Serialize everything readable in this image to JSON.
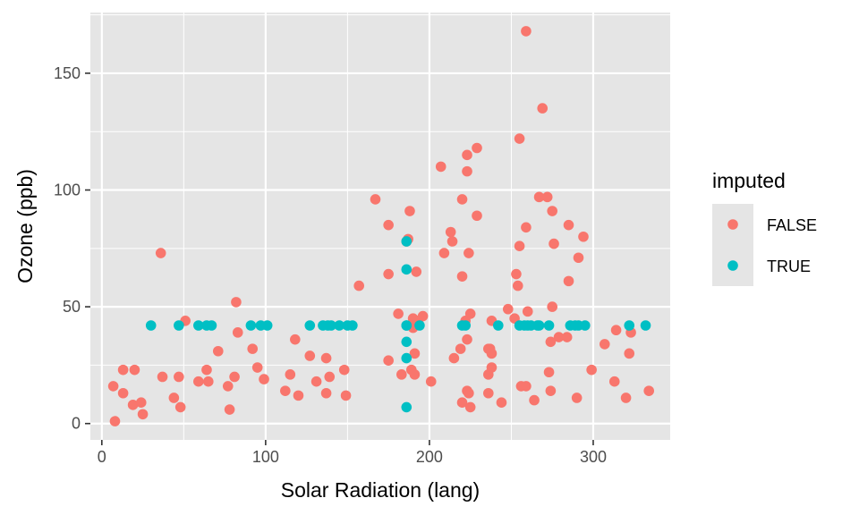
{
  "colors": {
    "panel_background": "#e5e5e5",
    "gridline": "#ffffff",
    "tick": "#333333",
    "false_series": "#f8766d",
    "true_series": "#00bfc4"
  },
  "chart_data": {
    "type": "scatter",
    "xlabel": "Solar Radiation (lang)",
    "ylabel": "Ozone (ppb)",
    "xlim": [
      -7,
      347
    ],
    "ylim": [
      -7,
      176
    ],
    "x_ticks": [
      0,
      100,
      200,
      300
    ],
    "y_ticks": [
      0,
      50,
      100,
      150
    ],
    "grid": true,
    "legend": {
      "title": "imputed",
      "placement": "right"
    },
    "series": [
      {
        "name": "FALSE",
        "color": "#f8766d",
        "points": [
          [
            190,
            41
          ],
          [
            118,
            36
          ],
          [
            149,
            12
          ],
          [
            313,
            18
          ],
          [
            299,
            23
          ],
          [
            99,
            19
          ],
          [
            19,
            8
          ],
          [
            256,
            16
          ],
          [
            290,
            11
          ],
          [
            274,
            14
          ],
          [
            65,
            18
          ],
          [
            334,
            14
          ],
          [
            307,
            34
          ],
          [
            78,
            6
          ],
          [
            322,
            30
          ],
          [
            44,
            11
          ],
          [
            8,
            1
          ],
          [
            320,
            11
          ],
          [
            25,
            4
          ],
          [
            92,
            32
          ],
          [
            13,
            23
          ],
          [
            252,
            45
          ],
          [
            223,
            115
          ],
          [
            279,
            37
          ],
          [
            127,
            29
          ],
          [
            291,
            71
          ],
          [
            323,
            39
          ],
          [
            148,
            23
          ],
          [
            191,
            21
          ],
          [
            284,
            37
          ],
          [
            37,
            20
          ],
          [
            120,
            12
          ],
          [
            137,
            13
          ],
          [
            269,
            135
          ],
          [
            248,
            49
          ],
          [
            236,
            32
          ],
          [
            175,
            64
          ],
          [
            314,
            40
          ],
          [
            276,
            77
          ],
          [
            267,
            97
          ],
          [
            272,
            97
          ],
          [
            175,
            85
          ],
          [
            264,
            10
          ],
          [
            175,
            27
          ],
          [
            48,
            7
          ],
          [
            260,
            48
          ],
          [
            274,
            35
          ],
          [
            285,
            61
          ],
          [
            187,
            79
          ],
          [
            220,
            63
          ],
          [
            7,
            16
          ],
          [
            294,
            80
          ],
          [
            223,
            108
          ],
          [
            81,
            20
          ],
          [
            82,
            52
          ],
          [
            213,
            82
          ],
          [
            275,
            50
          ],
          [
            253,
            64
          ],
          [
            254,
            59
          ],
          [
            83,
            39
          ],
          [
            24,
            9
          ],
          [
            77,
            16
          ],
          [
            255,
            122
          ],
          [
            229,
            89
          ],
          [
            207,
            110
          ],
          [
            222,
            44
          ],
          [
            137,
            28
          ],
          [
            192,
            65
          ],
          [
            273,
            22
          ],
          [
            157,
            59
          ],
          [
            64,
            23
          ],
          [
            71,
            31
          ],
          [
            51,
            44
          ],
          [
            115,
            21
          ],
          [
            244,
            9
          ],
          [
            190,
            45
          ],
          [
            259,
            168
          ],
          [
            36,
            73
          ],
          [
            255,
            76
          ],
          [
            229,
            118
          ],
          [
            259,
            84
          ],
          [
            285,
            85
          ],
          [
            220,
            96
          ],
          [
            214,
            78
          ],
          [
            224,
            73
          ],
          [
            275,
            91
          ],
          [
            225,
            47
          ],
          [
            237,
            32
          ],
          [
            139,
            20
          ],
          [
            189,
            23
          ],
          [
            236,
            21
          ],
          [
            95,
            24
          ],
          [
            238,
            44
          ],
          [
            183,
            21
          ],
          [
            215,
            28
          ],
          [
            220,
            9
          ],
          [
            236,
            13
          ],
          [
            196,
            46
          ],
          [
            201,
            18
          ],
          [
            224,
            13
          ],
          [
            238,
            24
          ],
          [
            259,
            16
          ],
          [
            13,
            13
          ],
          [
            20,
            23
          ],
          [
            223,
            36
          ],
          [
            225,
            7
          ],
          [
            223,
            14
          ],
          [
            238,
            30
          ],
          [
            112,
            14
          ],
          [
            59,
            18
          ],
          [
            47,
            20
          ],
          [
            167,
            96
          ],
          [
            186,
            78
          ],
          [
            209,
            73
          ],
          [
            188,
            91
          ],
          [
            181,
            47
          ],
          [
            219,
            32
          ],
          [
            193,
            44
          ],
          [
            191,
            30
          ],
          [
            131,
            18
          ]
        ]
      },
      {
        "name": "TRUE",
        "color": "#00bfc4",
        "points": [
          [
            30,
            42
          ],
          [
            47,
            42
          ],
          [
            59,
            42
          ],
          [
            64,
            42
          ],
          [
            67,
            42
          ],
          [
            91,
            42
          ],
          [
            97,
            42
          ],
          [
            101,
            42
          ],
          [
            127,
            42
          ],
          [
            135,
            42
          ],
          [
            138,
            42
          ],
          [
            140,
            42
          ],
          [
            145,
            42
          ],
          [
            150,
            42
          ],
          [
            153,
            42
          ],
          [
            186,
            42
          ],
          [
            186,
            42
          ],
          [
            186,
            7
          ],
          [
            186,
            28
          ],
          [
            186,
            35
          ],
          [
            186,
            66
          ],
          [
            186,
            78
          ],
          [
            194,
            42
          ],
          [
            220,
            42
          ],
          [
            222,
            42
          ],
          [
            242,
            42
          ],
          [
            255,
            42
          ],
          [
            258,
            42
          ],
          [
            260,
            42
          ],
          [
            262,
            42
          ],
          [
            266,
            42
          ],
          [
            267,
            42
          ],
          [
            273,
            42
          ],
          [
            286,
            42
          ],
          [
            289,
            42
          ],
          [
            291,
            42
          ],
          [
            295,
            42
          ],
          [
            322,
            42
          ],
          [
            332,
            42
          ]
        ]
      }
    ]
  }
}
